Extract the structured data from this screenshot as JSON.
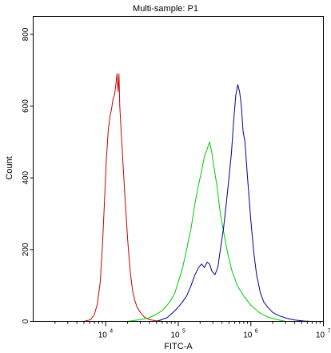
{
  "chart_data": {
    "type": "line",
    "title": "Multi-sample: P1",
    "xlabel": "FITC-A",
    "ylabel": "Count",
    "x_scale": "log",
    "xlim": [
      1000,
      10000000
    ],
    "ylim": [
      0,
      850
    ],
    "x_ticks": [
      {
        "value": 10000,
        "base": "10",
        "exp": "4"
      },
      {
        "value": 100000,
        "base": "10",
        "exp": "5"
      },
      {
        "value": 1000000,
        "base": "10",
        "exp": "6"
      },
      {
        "value": 10000000,
        "base": "10",
        "exp": "7"
      }
    ],
    "y_ticks": [
      0,
      200,
      400,
      600,
      800
    ],
    "grid": false,
    "series": [
      {
        "color": "#cc0000",
        "x": [
          5000,
          6200,
          7000,
          7700,
          8400,
          9000,
          9600,
          10200,
          10800,
          11400,
          12000,
          12600,
          13200,
          13800,
          14300,
          14800,
          15200,
          15600,
          16000,
          16400,
          16900,
          17400,
          18000,
          18600,
          19300,
          20000,
          21000,
          22000,
          23500,
          25000,
          27000,
          30000,
          34000,
          40000,
          48000,
          60000
        ],
        "y": [
          0,
          5,
          20,
          50,
          110,
          210,
          330,
          450,
          530,
          570,
          590,
          620,
          630,
          660,
          690,
          640,
          690,
          600,
          560,
          520,
          480,
          430,
          380,
          330,
          280,
          230,
          175,
          130,
          85,
          60,
          40,
          25,
          12,
          5,
          2,
          0
        ]
      },
      {
        "color": "#00cc00",
        "x": [
          20000,
          30000,
          40000,
          50000,
          60000,
          70000,
          80000,
          90000,
          100000,
          115000,
          130000,
          150000,
          170000,
          190000,
          210000,
          230000,
          250000,
          270000,
          290000,
          310000,
          340000,
          380000,
          430000,
          480000,
          550000,
          650000,
          800000,
          1000000,
          1300000,
          1700000,
          2300000,
          3000000
        ],
        "y": [
          0,
          5,
          10,
          20,
          30,
          45,
          60,
          80,
          110,
          150,
          200,
          260,
          330,
          380,
          420,
          460,
          480,
          500,
          470,
          430,
          380,
          300,
          240,
          190,
          140,
          100,
          70,
          45,
          25,
          12,
          5,
          0
        ]
      },
      {
        "color": "#00008b",
        "x": [
          50000,
          70000,
          90000,
          110000,
          130000,
          150000,
          170000,
          190000,
          210000,
          230000,
          250000,
          270000,
          290000,
          320000,
          350000,
          380000,
          420000,
          460000,
          500000,
          540000,
          580000,
          620000,
          660000,
          700000,
          740000,
          780000,
          830000,
          900000,
          1000000,
          1100000,
          1200000,
          1350000,
          1500000,
          1700000,
          2000000,
          2500000,
          3200000,
          4000000,
          5500000,
          7000000
        ],
        "y": [
          0,
          10,
          30,
          50,
          70,
          100,
          130,
          150,
          160,
          150,
          165,
          160,
          140,
          130,
          150,
          200,
          260,
          330,
          400,
          470,
          560,
          630,
          660,
          640,
          600,
          530,
          500,
          400,
          280,
          190,
          130,
          80,
          55,
          40,
          25,
          15,
          8,
          4,
          1,
          0
        ]
      }
    ]
  }
}
